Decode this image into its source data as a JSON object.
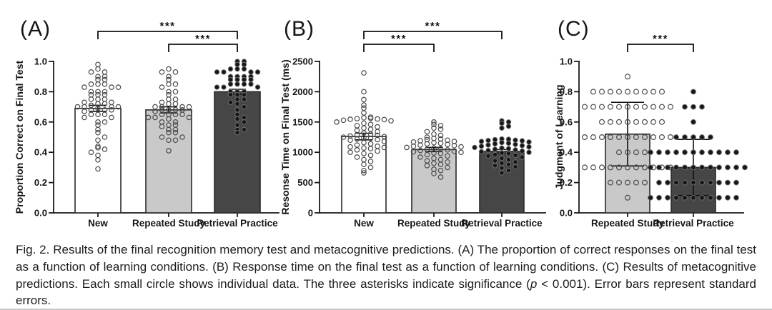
{
  "caption": {
    "part1": "Fig. 2.  Results of the final recognition memory test and metacognitive predictions. (A) The proportion of correct responses on the final test as a function of learning conditions. (B) Response time on the final test as a function of learning conditions. (C) Results of metacognitive predictions. Each small circle shows individual data. The three asterisks indicate significance (",
    "italic_p": "p",
    "part2": " < 0.001). Error bars represent standard errors."
  },
  "chart_data": [
    {
      "type": "bar",
      "panel_label": "(A)",
      "ylabel": "Proportion Correct on Final Test",
      "xlabel": "",
      "categories": [
        "New",
        "Repeated Study",
        "Retrieval Practice"
      ],
      "values": [
        0.69,
        0.68,
        0.8
      ],
      "errors": [
        0.02,
        0.02,
        0.016
      ],
      "bar_colors": [
        "#ffffff",
        "#c9c9c9",
        "#464646"
      ],
      "point_style": [
        "open",
        "open",
        "filled"
      ],
      "ylim": [
        0,
        1.0
      ],
      "yticks": [
        0.0,
        0.2,
        0.4,
        0.6,
        0.8,
        1.0
      ],
      "ytick_decimals": 1,
      "grid": false,
      "significance": [
        {
          "from": "New",
          "to": "Retrieval Practice",
          "label": "***"
        },
        {
          "from": "Repeated Study",
          "to": "Retrieval Practice",
          "label": "***"
        }
      ],
      "points": {
        "New": [
          0.98,
          0.95,
          0.93,
          0.93,
          0.9,
          0.9,
          0.88,
          0.88,
          0.85,
          0.85,
          0.85,
          0.83,
          0.83,
          0.83,
          0.8,
          0.8,
          0.8,
          0.78,
          0.78,
          0.78,
          0.75,
          0.75,
          0.75,
          0.73,
          0.73,
          0.72,
          0.72,
          0.71,
          0.7,
          0.7,
          0.7,
          0.7,
          0.69,
          0.68,
          0.68,
          0.68,
          0.67,
          0.65,
          0.65,
          0.65,
          0.63,
          0.63,
          0.6,
          0.6,
          0.58,
          0.55,
          0.53,
          0.5,
          0.48,
          0.44,
          0.43,
          0.42,
          0.4,
          0.38,
          0.35,
          0.29
        ],
        "Repeated Study": [
          0.95,
          0.93,
          0.93,
          0.9,
          0.88,
          0.85,
          0.85,
          0.83,
          0.8,
          0.8,
          0.78,
          0.75,
          0.75,
          0.73,
          0.72,
          0.72,
          0.7,
          0.7,
          0.7,
          0.7,
          0.68,
          0.68,
          0.68,
          0.68,
          0.67,
          0.65,
          0.65,
          0.65,
          0.65,
          0.63,
          0.63,
          0.63,
          0.62,
          0.6,
          0.6,
          0.58,
          0.58,
          0.57,
          0.55,
          0.55,
          0.53,
          0.53,
          0.5,
          0.5,
          0.48,
          0.48,
          0.41
        ],
        "Retrieval Practice": [
          1.0,
          1.0,
          0.98,
          0.98,
          0.95,
          0.95,
          0.95,
          0.93,
          0.93,
          0.93,
          0.93,
          0.9,
          0.9,
          0.9,
          0.9,
          0.88,
          0.88,
          0.88,
          0.88,
          0.85,
          0.85,
          0.85,
          0.85,
          0.83,
          0.83,
          0.83,
          0.8,
          0.8,
          0.8,
          0.78,
          0.78,
          0.78,
          0.75,
          0.75,
          0.73,
          0.72,
          0.7,
          0.68,
          0.65,
          0.63,
          0.62,
          0.6,
          0.58,
          0.55,
          0.55,
          0.53
        ]
      }
    },
    {
      "type": "bar",
      "panel_label": "(B)",
      "ylabel": "Resonse Time on Final Test (ms)",
      "xlabel": "",
      "categories": [
        "New",
        "Repeated Study",
        "Retrieval Practice"
      ],
      "values": [
        1260,
        1045,
        1015
      ],
      "errors": [
        55,
        35,
        30
      ],
      "bar_colors": [
        "#ffffff",
        "#c9c9c9",
        "#464646"
      ],
      "point_style": [
        "open",
        "open",
        "filled"
      ],
      "ylim": [
        0,
        2500
      ],
      "yticks": [
        0,
        500,
        1000,
        1500,
        2000,
        2500
      ],
      "ytick_decimals": 0,
      "grid": false,
      "significance": [
        {
          "from": "New",
          "to": "Retrieval Practice",
          "label": "***"
        },
        {
          "from": "New",
          "to": "Repeated Study",
          "label": "***"
        }
      ],
      "points": {
        "New": [
          2310,
          2000,
          1870,
          1780,
          1730,
          1650,
          1580,
          1570,
          1560,
          1555,
          1550,
          1545,
          1540,
          1530,
          1520,
          1500,
          1480,
          1460,
          1440,
          1420,
          1400,
          1380,
          1360,
          1340,
          1320,
          1300,
          1290,
          1280,
          1270,
          1260,
          1250,
          1240,
          1230,
          1220,
          1210,
          1200,
          1180,
          1160,
          1140,
          1120,
          1100,
          1090,
          1080,
          1070,
          1060,
          1040,
          1020,
          1000,
          980,
          950,
          920,
          880,
          850,
          800,
          750,
          700,
          660
        ],
        "Repeated Study": [
          1500,
          1460,
          1440,
          1400,
          1380,
          1340,
          1300,
          1280,
          1250,
          1230,
          1220,
          1210,
          1200,
          1190,
          1180,
          1170,
          1160,
          1150,
          1140,
          1130,
          1120,
          1110,
          1100,
          1090,
          1080,
          1070,
          1060,
          1050,
          1040,
          1030,
          1020,
          1010,
          1000,
          990,
          980,
          960,
          940,
          920,
          900,
          880,
          860,
          840,
          820,
          800,
          780,
          750,
          720,
          700,
          650,
          590
        ],
        "Retrieval Practice": [
          1520,
          1500,
          1480,
          1430,
          1400,
          1220,
          1215,
          1210,
          1200,
          1195,
          1190,
          1180,
          1170,
          1160,
          1150,
          1140,
          1130,
          1120,
          1110,
          1100,
          1090,
          1080,
          1070,
          1060,
          1050,
          1040,
          1030,
          1020,
          1010,
          1000,
          990,
          980,
          960,
          950,
          940,
          920,
          900,
          880,
          860,
          840,
          820,
          800,
          780,
          760,
          740,
          700,
          660
        ]
      }
    },
    {
      "type": "bar",
      "panel_label": "(C)",
      "ylabel": "Judgment of Learning",
      "xlabel": "",
      "categories": [
        "Repeated Study",
        "Retrieval Practice"
      ],
      "values": [
        0.52,
        0.3
      ],
      "errors": [
        0.21,
        0.185
      ],
      "bar_colors": [
        "#c9c9c9",
        "#464646"
      ],
      "point_style": [
        "open",
        "filled"
      ],
      "ylim": [
        0,
        1.0
      ],
      "yticks": [
        0.0,
        0.2,
        0.4,
        0.6,
        0.8,
        1.0
      ],
      "ytick_decimals": 1,
      "grid": false,
      "significance": [
        {
          "from": "Repeated Study",
          "to": "Retrieval Practice",
          "label": "***"
        }
      ],
      "points": {
        "Repeated Study": [
          0.9,
          0.8,
          0.8,
          0.8,
          0.8,
          0.8,
          0.8,
          0.8,
          0.8,
          0.8,
          0.7,
          0.7,
          0.7,
          0.7,
          0.7,
          0.7,
          0.7,
          0.7,
          0.7,
          0.7,
          0.7,
          0.6,
          0.6,
          0.6,
          0.6,
          0.6,
          0.6,
          0.6,
          0.6,
          0.5,
          0.5,
          0.5,
          0.5,
          0.5,
          0.5,
          0.5,
          0.5,
          0.5,
          0.5,
          0.5,
          0.4,
          0.4,
          0.4,
          0.4,
          0.3,
          0.3,
          0.3,
          0.3,
          0.3,
          0.3,
          0.3,
          0.3,
          0.3,
          0.3,
          0.3,
          0.2,
          0.2,
          0.2,
          0.2,
          0.2,
          0.1
        ],
        "Retrieval Practice": [
          0.8,
          0.7,
          0.7,
          0.7,
          0.6,
          0.5,
          0.5,
          0.5,
          0.5,
          0.5,
          0.4,
          0.4,
          0.4,
          0.4,
          0.4,
          0.4,
          0.4,
          0.4,
          0.4,
          0.4,
          0.4,
          0.3,
          0.3,
          0.3,
          0.3,
          0.3,
          0.3,
          0.3,
          0.3,
          0.3,
          0.3,
          0.3,
          0.3,
          0.2,
          0.2,
          0.2,
          0.2,
          0.2,
          0.2,
          0.2,
          0.2,
          0.2,
          0.2,
          0.1,
          0.1,
          0.1,
          0.1,
          0.1,
          0.1,
          0.1,
          0.1,
          0.1,
          0.1,
          0.1
        ]
      }
    }
  ]
}
